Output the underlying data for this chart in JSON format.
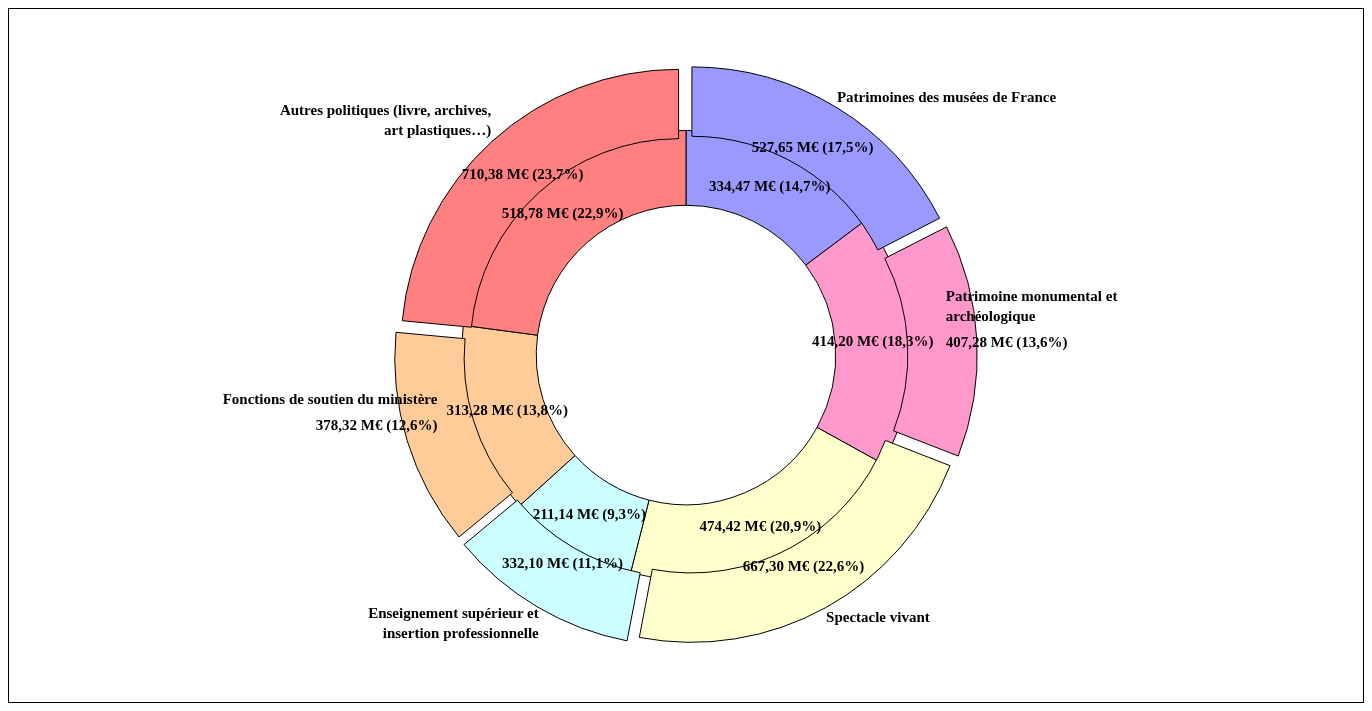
{
  "chart_data": {
    "type": "donut",
    "categories": [
      "Patrimoines des musées de France",
      "Patrimoine monumental et archéologique",
      "Spectacle vivant",
      "Enseignement supérieur et insertion professionnelle",
      "Fonctions de soutien du ministère",
      "Autres politiques (livre, archives, art plastiques…)"
    ],
    "colors": [
      "#9999ff",
      "#ff99cc",
      "#ffffcc",
      "#ccffff",
      "#ffcc99",
      "#ff8080"
    ],
    "series": [
      {
        "values": [
          527.65,
          407.28,
          667.3,
          332.1,
          378.32,
          710.38
        ],
        "value_labels": [
          "527,65 M€ (17,5%)",
          "407,28 M€ (13,6%)",
          "667,30 M€ (22,6%)",
          "332,10 M€ (11,1%)",
          "378,32 M€ (12,6%)",
          "710,38 M€ (23,7%)"
        ]
      },
      {
        "values": [
          334.47,
          414.2,
          474.42,
          211.14,
          313.28,
          518.78
        ],
        "value_labels": [
          "334,47 M€ (14,7%)",
          "414,20 M€ (18,3%)",
          "474,42 M€ (20,9%)",
          "211,14 M€ (9,3%)",
          "313,28 M€ (13,8%)",
          "518,78 M€ (22,9%)"
        ]
      }
    ],
    "legend": false
  }
}
